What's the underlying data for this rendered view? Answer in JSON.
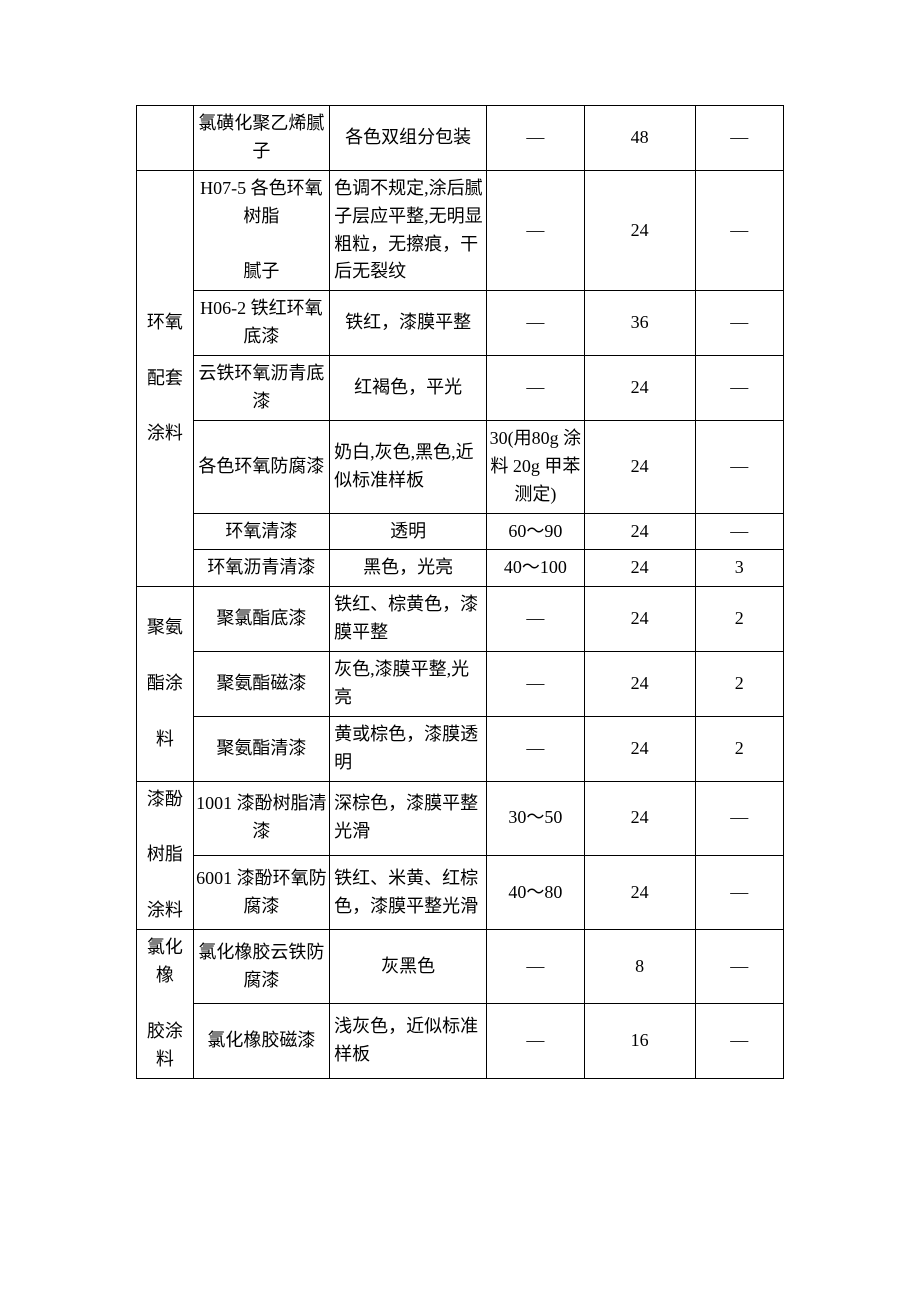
{
  "table": {
    "columns": [
      "category",
      "name",
      "description",
      "value1",
      "value2",
      "value3"
    ],
    "colWidths": [
      "54px",
      "138px",
      "158px",
      "96px",
      "112px",
      "88px"
    ],
    "fontSize": 18,
    "borderColor": "#000000",
    "background": "#ffffff",
    "textColor": "#000000",
    "groups": [
      {
        "category": "",
        "rows": [
          {
            "name": "氯磺化聚乙烯腻子",
            "desc": "各色双组分包装",
            "v1": "—",
            "v2": "48",
            "v3": "—"
          }
        ]
      },
      {
        "category": "环氧\n\n配套\n\n涂料",
        "rows": [
          {
            "name": "H07-5 各色环氧树脂\n\n腻子",
            "desc": "色调不规定,涂后腻子层应平整,无明显粗粒，无擦痕，干后无裂纹",
            "descAlign": "left",
            "v1": "—",
            "v2": "24",
            "v3": "—"
          },
          {
            "name": "H06-2 铁红环氧底漆",
            "desc": "铁红，漆膜平整",
            "v1": "—",
            "v2": "36",
            "v3": "—"
          },
          {
            "name": "云铁环氧沥青底漆",
            "desc": "红褐色，平光",
            "v1": "—",
            "v2": "24",
            "v3": "—"
          },
          {
            "name": "各色环氧防腐漆",
            "desc": "奶白,灰色,黑色,近似标准样板",
            "descAlign": "left",
            "v1": "30(用80g 涂料 20g 甲苯测定)",
            "v2": "24",
            "v3": "—"
          },
          {
            "name": "环氧清漆",
            "desc": "透明",
            "v1": "60～90",
            "v2": "24",
            "v3": "—"
          },
          {
            "name": "环氧沥青清漆",
            "desc": "黑色，光亮",
            "v1": "40～100",
            "v2": "24",
            "v3": "3"
          }
        ]
      },
      {
        "category": "聚氨\n\n酯涂\n\n料",
        "rows": [
          {
            "name": "聚氯酯底漆",
            "desc": "铁红、棕黄色，漆膜平整",
            "descAlign": "left",
            "v1": "—",
            "v2": "24",
            "v3": "2"
          },
          {
            "name": "聚氨酯磁漆",
            "desc": "灰色,漆膜平整,光亮",
            "descAlign": "left",
            "v1": "—",
            "v2": "24",
            "v3": "2"
          },
          {
            "name": "聚氨酯清漆",
            "desc": "黄或棕色，漆膜透明",
            "descAlign": "left",
            "v1": "—",
            "v2": "24",
            "v3": "2"
          }
        ]
      },
      {
        "category": "漆酚\n\n树脂\n\n涂料",
        "rows": [
          {
            "name": "1001 漆酚树脂清漆",
            "desc": "深棕色，漆膜平整光滑",
            "descAlign": "left",
            "v1": "30～50",
            "v2": "24",
            "v3": "—"
          },
          {
            "name": "6001 漆酚环氧防腐漆",
            "desc": "铁红、米黄、红棕色，漆膜平整光滑",
            "descAlign": "left",
            "v1": "40～80",
            "v2": "24",
            "v3": "—"
          }
        ]
      },
      {
        "category": "氯化橡\n\n胶涂料",
        "rows": [
          {
            "name": "氯化橡胶云铁防腐漆",
            "desc": "灰黑色",
            "v1": "—",
            "v2": "8",
            "v3": "—"
          },
          {
            "name": "氯化橡胶磁漆",
            "desc": "浅灰色，近似标准样板",
            "descAlign": "left",
            "v1": "—",
            "v2": "16",
            "v3": "—"
          }
        ]
      }
    ]
  }
}
